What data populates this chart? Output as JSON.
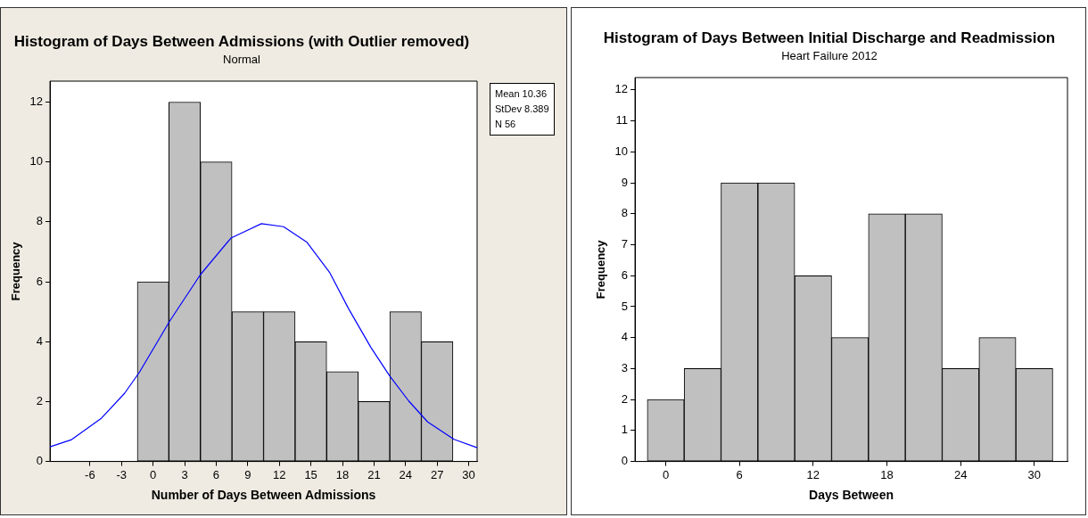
{
  "chart_data": [
    {
      "type": "histogram",
      "title": "Histogram of Days Between Admissions (with Outlier removed)",
      "subtitle": "Normal",
      "xlabel": "Number of Days Between Admissions",
      "ylabel": "Frequency",
      "xlim": [
        -9.8,
        30.8
      ],
      "xticks": [
        -6,
        -3,
        0,
        3,
        6,
        9,
        12,
        15,
        18,
        21,
        24,
        27,
        30
      ],
      "ylim": [
        0,
        12.7
      ],
      "yticks": [
        0,
        2,
        4,
        6,
        8,
        10,
        12
      ],
      "grid": false,
      "legend": false,
      "annotations": [
        "Mean 10.36",
        "StDev 8.389",
        "N 56"
      ],
      "series": [
        {
          "color": "#c0c0c0",
          "bins": [
            -1.5,
            1.5,
            4.5,
            7.5,
            10.5,
            13.5,
            16.5,
            19.5,
            22.5,
            25.5,
            28.5
          ],
          "values": [
            6,
            12,
            10,
            5,
            5,
            4,
            3,
            2,
            5,
            4
          ]
        },
        {
          "type": "line",
          "color": "#0000ff",
          "x": [
            -9.8,
            -7.8,
            -4.9,
            -2.7,
            -1.3,
            1.6,
            4.5,
            7.4,
            10.3,
            12.4,
            14.6,
            16.8,
            18.6,
            20.7,
            22.5,
            24.3,
            26.1,
            28.6,
            30.8
          ],
          "values": [
            0.49,
            0.72,
            1.45,
            2.28,
            2.98,
            4.7,
            6.24,
            7.46,
            7.94,
            7.84,
            7.33,
            6.3,
            5.09,
            3.81,
            2.85,
            2.02,
            1.32,
            0.74,
            0.46
          ]
        }
      ]
    },
    {
      "type": "histogram",
      "title": "Histogram of Days Between Initial Discharge and Readmission",
      "subtitle": "Heart Failure 2012",
      "xlabel": "Days Between",
      "ylabel": "Frequency",
      "xlim": [
        -2.5,
        32.7
      ],
      "xticks": [
        0,
        6,
        12,
        18,
        24,
        30
      ],
      "ylim": [
        0,
        12.4
      ],
      "yticks": [
        0,
        1,
        2,
        3,
        4,
        5,
        6,
        7,
        8,
        9,
        10,
        11,
        12
      ],
      "grid": false,
      "legend": false,
      "color": "#c0c0c0",
      "bins": [
        -1.5,
        1.5,
        4.5,
        7.5,
        10.5,
        13.5,
        16.5,
        19.5,
        22.5,
        25.5,
        28.5,
        31.5
      ],
      "values": [
        2,
        3,
        9,
        9,
        6,
        4,
        8,
        8,
        3,
        4,
        3
      ]
    }
  ]
}
